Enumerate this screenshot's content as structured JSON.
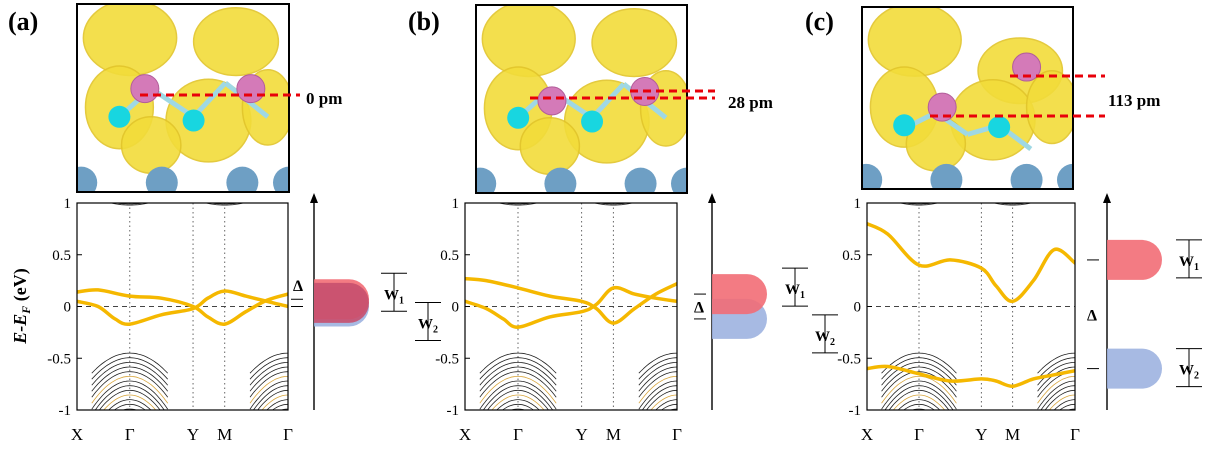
{
  "figure": {
    "ylabel": "E-E",
    "ylabel_sub": "F",
    "ylabel_unit": " (eV)",
    "colors": {
      "band_black": "#222222",
      "band_gold": "#f5b800",
      "band_gold_faint": "#d7a53d",
      "iso_yellow": "#f2dc3a",
      "iso_yellow_dark": "#e2c52a",
      "atom_pink": "#d47ab8",
      "atom_cyan": "#18d6e0",
      "atom_steel": "#6e9fc4",
      "marker_red": "#e8000a",
      "dos_red": "#f26d75",
      "dos_blue": "#9db3e0",
      "dos_overlap": "#c8506e"
    }
  },
  "chart_data": [
    {
      "type": "line",
      "panel_label": "(a)",
      "displacement_label": "0 pm",
      "ylim": [
        -1,
        1
      ],
      "yticks": [
        "1",
        "0.5",
        "0",
        "-0.5",
        "-1"
      ],
      "kpath_labels": [
        "X",
        "Γ",
        "Y",
        "M",
        "Γ"
      ],
      "kpath_positions": [
        0,
        0.25,
        0.55,
        0.7,
        1.0
      ],
      "gold_bands": [
        {
          "x": [
            0,
            0.1,
            0.25,
            0.4,
            0.55,
            0.62,
            0.7,
            0.8,
            0.9,
            1.0
          ],
          "y": [
            0.14,
            0.16,
            0.1,
            0.08,
            0.0,
            -0.1,
            -0.17,
            -0.05,
            0.06,
            0.12
          ]
        },
        {
          "x": [
            0,
            0.1,
            0.18,
            0.25,
            0.4,
            0.55,
            0.62,
            0.7,
            0.8,
            0.9,
            1.0
          ],
          "y": [
            0.05,
            0.0,
            -0.12,
            -0.17,
            -0.08,
            -0.02,
            0.08,
            0.15,
            0.1,
            0.05,
            0.0
          ]
        }
      ],
      "dos": {
        "delta_label": "Δ",
        "w1_label": "W",
        "w1_sub": "1",
        "w2_label": "W",
        "w2_sub": "2",
        "red_center": 0.07,
        "blue_center": 0.0
      }
    },
    {
      "type": "line",
      "panel_label": "(b)",
      "displacement_label": "28 pm",
      "ylim": [
        -1,
        1
      ],
      "yticks": [
        "1",
        "0.5",
        "0",
        "-0.5",
        "-1"
      ],
      "kpath_labels": [
        "X",
        "Γ",
        "Y",
        "M",
        "Γ"
      ],
      "kpath_positions": [
        0,
        0.25,
        0.55,
        0.7,
        1.0
      ],
      "gold_bands": [
        {
          "x": [
            0,
            0.1,
            0.25,
            0.4,
            0.55,
            0.62,
            0.7,
            0.8,
            0.9,
            1.0
          ],
          "y": [
            0.27,
            0.25,
            0.18,
            0.1,
            0.05,
            -0.02,
            -0.16,
            -0.02,
            0.12,
            0.22
          ]
        },
        {
          "x": [
            0,
            0.1,
            0.18,
            0.25,
            0.4,
            0.55,
            0.62,
            0.7,
            0.8,
            0.9,
            1.0
          ],
          "y": [
            0.05,
            -0.02,
            -0.12,
            -0.2,
            -0.1,
            -0.05,
            0.02,
            0.18,
            0.12,
            0.08,
            0.05
          ]
        }
      ],
      "dos": {
        "delta_label": "Δ",
        "w1_label": "W",
        "w1_sub": "1",
        "w2_label": "W",
        "w2_sub": "2",
        "red_center": 0.12,
        "blue_center": -0.12
      }
    },
    {
      "type": "line",
      "panel_label": "(c)",
      "displacement_label": "113 pm",
      "ylim": [
        -1,
        1
      ],
      "yticks": [
        "1",
        "0.5",
        "0",
        "-0.5",
        "-1"
      ],
      "kpath_labels": [
        "X",
        "Γ",
        "Y",
        "M",
        "Γ"
      ],
      "kpath_positions": [
        0,
        0.25,
        0.55,
        0.7,
        1.0
      ],
      "gold_bands": [
        {
          "x": [
            0,
            0.1,
            0.25,
            0.4,
            0.55,
            0.62,
            0.7,
            0.8,
            0.9,
            1.0
          ],
          "y": [
            0.8,
            0.7,
            0.4,
            0.45,
            0.37,
            0.2,
            0.05,
            0.25,
            0.55,
            0.42
          ]
        },
        {
          "x": [
            0,
            0.1,
            0.25,
            0.4,
            0.55,
            0.62,
            0.7,
            0.8,
            0.9,
            1.0
          ],
          "y": [
            -0.6,
            -0.58,
            -0.65,
            -0.72,
            -0.7,
            -0.72,
            -0.77,
            -0.7,
            -0.66,
            -0.62
          ]
        }
      ],
      "dos": {
        "delta_label": "Δ",
        "w1_label": "W",
        "w1_sub": "1",
        "w2_label": "W",
        "w2_sub": "2",
        "red_center": 0.45,
        "blue_center": -0.6
      }
    }
  ]
}
